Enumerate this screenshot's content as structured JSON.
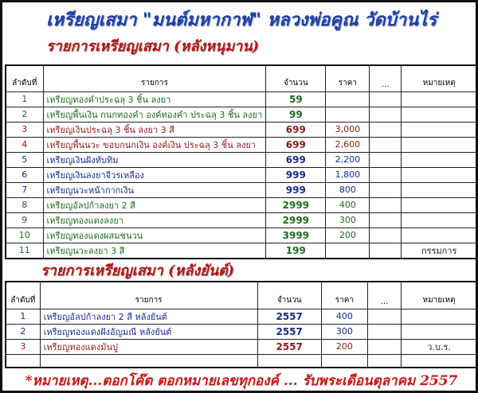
{
  "title": "เหรียญเสมา \"มนต์มหากาฬ\" หลวงพ่อคูณ วัดบ้านไร่",
  "section1": {
    "heading": "รายการเหรียญเสมา (หลังหนุมาน)",
    "headers": [
      "ลำดับที่",
      "รายการ",
      "จำนวน",
      "ราคา",
      "...",
      "หมายเหตุ"
    ],
    "rows": [
      {
        "no": "1",
        "item": "เหรียญทองคำประฉลุ 3 ชิ้น ลงยา",
        "qty": "59",
        "price": "",
        "extra": "",
        "note": "",
        "color": "#1e6a1e"
      },
      {
        "no": "2",
        "item": "เหรียญพื้นเงิน กนกทองคำ องค์ทองคำ ประฉลุ 3 ชิ้น ลงยา",
        "qty": "99",
        "price": "",
        "extra": "",
        "note": "",
        "color": "#1e6a1e"
      },
      {
        "no": "3",
        "item": "เหรียญเงินประฉลุ 3 ชิ้น ลงยา 3 สี",
        "qty": "699",
        "price": "3,000",
        "extra": "",
        "note": "",
        "color": "#8a1a1a"
      },
      {
        "no": "4",
        "item": "เหรียญพื้นนวะ ขอบกนกเงิน องค์เงิน ประฉลุ 3 ชิ้น ลงยา",
        "qty": "699",
        "price": "2,600",
        "extra": "",
        "note": "",
        "color": "#8a1a1a"
      },
      {
        "no": "5",
        "item": "เหรียญเงินฝังทับทิม",
        "qty": "699",
        "price": "2,200",
        "extra": "",
        "note": "",
        "color": "#1a2a8a"
      },
      {
        "no": "6",
        "item": "เหรียญเงินลงยาจีวรเหลือง",
        "qty": "999",
        "price": "1,800",
        "extra": "",
        "note": "",
        "color": "#1a2a8a"
      },
      {
        "no": "7",
        "item": "เหรียญนวะหน้ากากเงิน",
        "qty": "999",
        "price": "800",
        "extra": "",
        "note": "",
        "color": "#1a2a8a"
      },
      {
        "no": "8",
        "item": "เหรียญอัลปก้าลงยา 2 สี",
        "qty": "2999",
        "price": "400",
        "extra": "",
        "note": "",
        "color": "#1e6a1e"
      },
      {
        "no": "9",
        "item": "เหรียญทองแดงลงยา",
        "qty": "2999",
        "price": "300",
        "extra": "",
        "note": "",
        "color": "#1e6a1e"
      },
      {
        "no": "10",
        "item": "เหรียญทองแดงผสมชนวน",
        "qty": "3999",
        "price": "200",
        "extra": "",
        "note": "",
        "color": "#1e6a1e"
      },
      {
        "no": "11",
        "item": "เหรียญนวะลงยา 3 สี",
        "qty": "199",
        "price": "",
        "extra": "",
        "note": "กรรมการ",
        "color": "#1e6a1e"
      }
    ]
  },
  "section2": {
    "heading": "รายการเหรียญเสมา (หลังยันต์)",
    "headers": [
      "ลำดับที่",
      "รายการ",
      "จำนวน",
      "ราคา",
      "...",
      "หมายเหตุ"
    ],
    "rows": [
      {
        "no": "1",
        "item": "เหรียญอัลปก้าลงยา 2 สี หลังยันต์",
        "qty": "2557",
        "price": "400",
        "extra": "",
        "note": "",
        "color": "#1a2a8a"
      },
      {
        "no": "2",
        "item": "เหรียญทองแดงฝังอัญมณี หลังยันต์",
        "qty": "2557",
        "price": "300",
        "extra": "",
        "note": "",
        "color": "#1a2a8a"
      },
      {
        "no": "3",
        "item": "เหรียญทองแดงมันปู",
        "qty": "2557",
        "price": "200",
        "extra": "",
        "note": "ว.บ.ร.",
        "color": "#8a1a1a"
      },
      {
        "no": "",
        "item": "",
        "qty": "",
        "price": "",
        "extra": "",
        "note": "",
        "color": "#000000"
      }
    ]
  },
  "footer": "*หมายเหตุ...ตอกโค๊ต ตอกหมายเลขทุกองค์ ... รับพระเดือนตุลาคม 2557"
}
